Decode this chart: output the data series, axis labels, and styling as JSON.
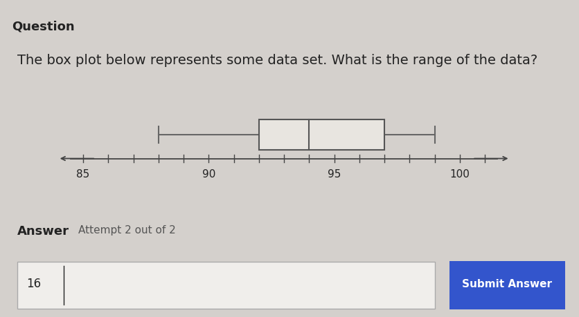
{
  "title_text": "The box plot below represents some data set. What is the range of the data?",
  "question_label": "Question",
  "answer_label": "Answer",
  "attempt_text": "Attempt 2 out of 2",
  "answer_value": "16",
  "submit_button_text": "Submit Answer",
  "box_plot": {
    "min": 88,
    "q1": 92,
    "median": 94,
    "q3": 97,
    "max": 99
  },
  "axis": {
    "xmin": 84,
    "xmax": 102,
    "display_min": 85,
    "display_max": 101,
    "ticks": [
      85,
      90,
      95,
      100
    ],
    "tick_labels": [
      "85",
      "90",
      "95",
      "100"
    ]
  },
  "bg_color_top": "#d4d0cc",
  "bg_color_bottom": "#cac7c3",
  "box_color": "#e8e5e0",
  "box_edge_color": "#555555",
  "whisker_color": "#666666",
  "axis_color": "#444444",
  "text_color": "#222222",
  "text_color_light": "#555555",
  "font_size_title": 14,
  "font_size_axis": 11,
  "font_size_answer_label": 13,
  "font_size_answer_value": 12,
  "submit_button_color": "#3355cc",
  "submit_button_text_color": "#ffffff",
  "answer_box_color": "#f0eeeb",
  "answer_box_edge": "#aaaaaa",
  "divider_color": "#bbbbbb"
}
